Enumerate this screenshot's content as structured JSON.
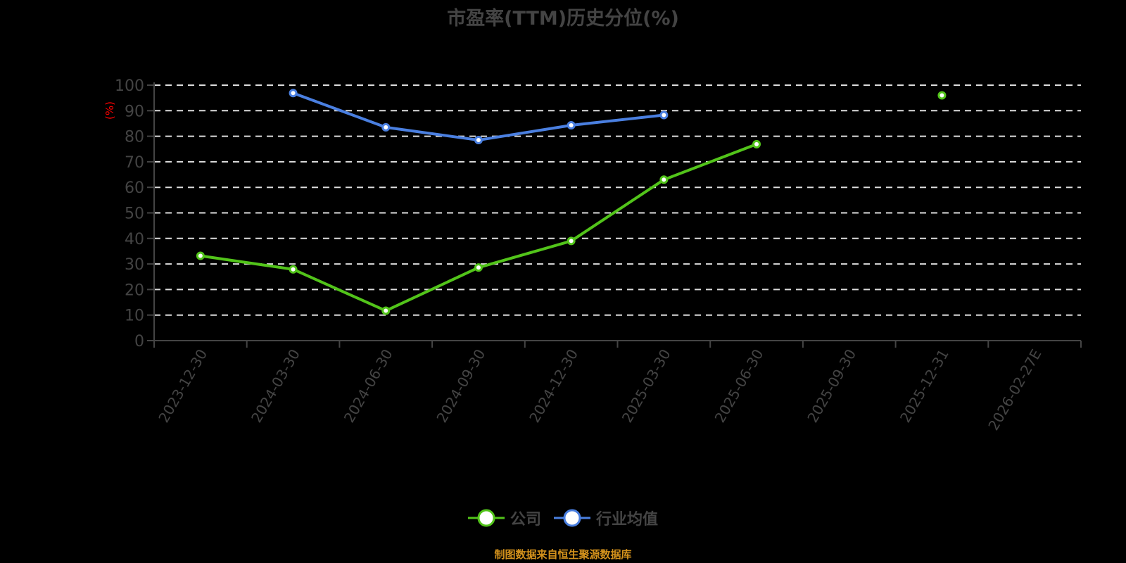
{
  "chart_data": {
    "type": "line",
    "title": "市盈率(TTM)历史分位(%)",
    "xlabel": "",
    "ylabel": "(%)",
    "ylim": [
      0,
      100
    ],
    "yticks": [
      0,
      10,
      20,
      30,
      40,
      50,
      60,
      70,
      80,
      90,
      100
    ],
    "grid": true,
    "legend_position": "bottom",
    "categories": [
      "2023-12-30",
      "2024-03-30",
      "2024-06-30",
      "2024-09-30",
      "2024-12-30",
      "2025-03-30",
      "2025-06-30",
      "2025-09-30",
      "2025-12-31",
      "2026-02-27E"
    ],
    "series": [
      {
        "name": "公司",
        "color": "#52c41a",
        "values": [
          33.2,
          27.9,
          11.7,
          28.6,
          39.0,
          63.0,
          76.9,
          null,
          96.0,
          null
        ]
      },
      {
        "name": "行业均值",
        "color": "#4a7fe0",
        "values": [
          null,
          96.9,
          83.5,
          78.5,
          84.3,
          88.3,
          null,
          null,
          null,
          null
        ]
      }
    ]
  },
  "legend": [
    {
      "label": "公司",
      "color": "#52c41a"
    },
    {
      "label": "行业均值",
      "color": "#4a7fe0"
    }
  ],
  "footer": {
    "text": "制图数据来自恒生聚源数据库",
    "color": "#d4921c"
  }
}
